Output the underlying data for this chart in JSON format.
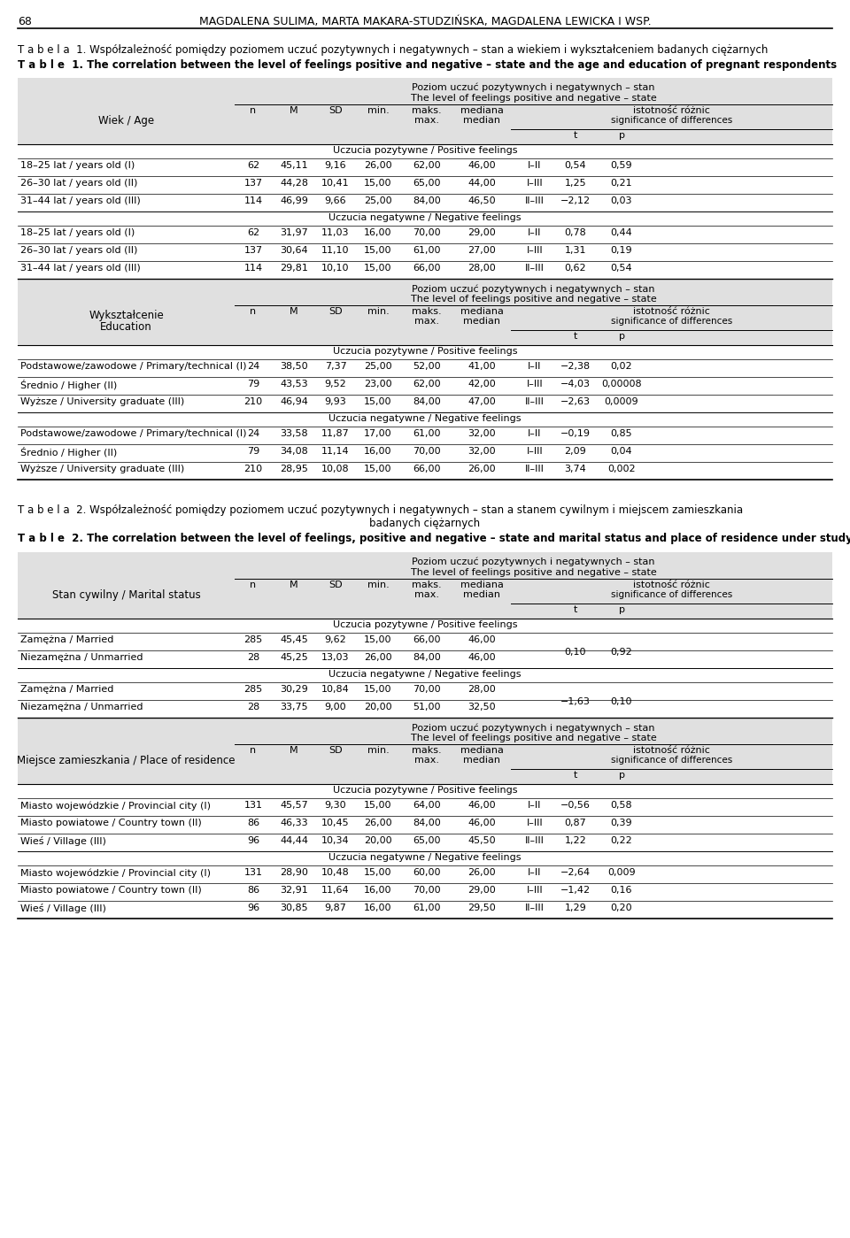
{
  "table1_title_pl": "T a b e l a  1. Współzależność pomiędzy poziomem uczuć pozytywnych i negatywnych – stan a wiekiem i wykształceniem badanych ciężarnych",
  "table1_title_en": "T a b l e  1. The correlation between the level of feelings positive and negative – state and the age and education of pregnant respondents",
  "table2_title_pl_line1": "T a b e l a  2. Współzależność pomiędzy poziomem uczuć pozytywnych i negatywnych – stan a stanem cywilnym i miejscem zamieszkania",
  "table2_title_pl_line2": "badanych ciężarnych",
  "table2_title_en": "T a b l e  2. The correlation between the level of feelings, positive and negative – state and marital status and place of residence under study",
  "col_header_pl": "Poziom uczuć pozytywnych i negatywnych – stan",
  "col_header_en": "The level of feelings positive and negative – state",
  "positive_feelings": "Uczucia pozytywne / Positive feelings",
  "negative_feelings": "Uczucia negatywne / Negative feelings",
  "table1_section1_rows_pos": [
    [
      "18–25 lat / years old (I)",
      "62",
      "45,11",
      "9,16",
      "26,00",
      "62,00",
      "46,00",
      "I–II",
      "0,54",
      "0,59"
    ],
    [
      "26–30 lat / years old (II)",
      "137",
      "44,28",
      "10,41",
      "15,00",
      "65,00",
      "44,00",
      "I–III",
      "1,25",
      "0,21"
    ],
    [
      "31–44 lat / years old (III)",
      "114",
      "46,99",
      "9,66",
      "25,00",
      "84,00",
      "46,50",
      "II–III",
      "−2,12",
      "0,03"
    ]
  ],
  "table1_section1_rows_neg": [
    [
      "18–25 lat / years old (I)",
      "62",
      "31,97",
      "11,03",
      "16,00",
      "70,00",
      "29,00",
      "I–II",
      "0,78",
      "0,44"
    ],
    [
      "26–30 lat / years old (II)",
      "137",
      "30,64",
      "11,10",
      "15,00",
      "61,00",
      "27,00",
      "I–III",
      "1,31",
      "0,19"
    ],
    [
      "31–44 lat / years old (III)",
      "114",
      "29,81",
      "10,10",
      "15,00",
      "66,00",
      "28,00",
      "II–III",
      "0,62",
      "0,54"
    ]
  ],
  "table1_section2_rows_pos": [
    [
      "Podstawowe/zawodowe / Primary/technical (I)",
      "24",
      "38,50",
      "7,37",
      "25,00",
      "52,00",
      "41,00",
      "I–II",
      "−2,38",
      "0,02"
    ],
    [
      "Średnio / Higher (II)",
      "79",
      "43,53",
      "9,52",
      "23,00",
      "62,00",
      "42,00",
      "I–III",
      "−4,03",
      "0,00008"
    ],
    [
      "Wyższe / University graduate (III)",
      "210",
      "46,94",
      "9,93",
      "15,00",
      "84,00",
      "47,00",
      "II–III",
      "−2,63",
      "0,0009"
    ]
  ],
  "table1_section2_rows_neg": [
    [
      "Podstawowe/zawodowe / Primary/technical (I)",
      "24",
      "33,58",
      "11,87",
      "17,00",
      "61,00",
      "32,00",
      "I–II",
      "−0,19",
      "0,85"
    ],
    [
      "Średnio / Higher (II)",
      "79",
      "34,08",
      "11,14",
      "16,00",
      "70,00",
      "32,00",
      "I–III",
      "2,09",
      "0,04"
    ],
    [
      "Wyższe / University graduate (III)",
      "210",
      "28,95",
      "10,08",
      "15,00",
      "66,00",
      "26,00",
      "II–III",
      "3,74",
      "0,002"
    ]
  ],
  "table2_section1_rows_pos": [
    [
      "Zamężna / Married",
      "285",
      "45,45",
      "9,62",
      "15,00",
      "66,00",
      "46,00"
    ],
    [
      "Niezamężna / Unmarried",
      "28",
      "45,25",
      "13,03",
      "26,00",
      "84,00",
      "46,00"
    ]
  ],
  "table2_section1_rows_neg": [
    [
      "Zamężna / Married",
      "285",
      "30,29",
      "10,84",
      "15,00",
      "70,00",
      "28,00"
    ],
    [
      "Niezamężna / Unmarried",
      "28",
      "33,75",
      "9,00",
      "20,00",
      "51,00",
      "32,50"
    ]
  ],
  "table2_section1_merged_pos": [
    "0,10",
    "0,92"
  ],
  "table2_section1_merged_neg": [
    "−1,63",
    "0,10"
  ],
  "table2_section2_rows_pos": [
    [
      "Miasto wojewódzkie / Provincial city (I)",
      "131",
      "45,57",
      "9,30",
      "15,00",
      "64,00",
      "46,00",
      "I–II",
      "−0,56",
      "0,58"
    ],
    [
      "Miasto powiatowe / Country town (II)",
      "86",
      "46,33",
      "10,45",
      "26,00",
      "84,00",
      "46,00",
      "I–III",
      "0,87",
      "0,39"
    ],
    [
      "Wieś / Village (III)",
      "96",
      "44,44",
      "10,34",
      "20,00",
      "65,00",
      "45,50",
      "II–III",
      "1,22",
      "0,22"
    ]
  ],
  "table2_section2_rows_neg": [
    [
      "Miasto wojewódzkie / Provincial city (I)",
      "131",
      "28,90",
      "10,48",
      "15,00",
      "60,00",
      "26,00",
      "I–II",
      "−2,64",
      "0,009"
    ],
    [
      "Miasto powiatowe / Country town (II)",
      "86",
      "32,91",
      "11,64",
      "16,00",
      "70,00",
      "29,00",
      "I–III",
      "−1,42",
      "0,16"
    ],
    [
      "Wieś / Village (III)",
      "96",
      "30,85",
      "9,87",
      "16,00",
      "61,00",
      "29,50",
      "II–III",
      "1,29",
      "0,20"
    ]
  ],
  "bg_gray": "#e0e0e0",
  "bg_white": "#ffffff"
}
